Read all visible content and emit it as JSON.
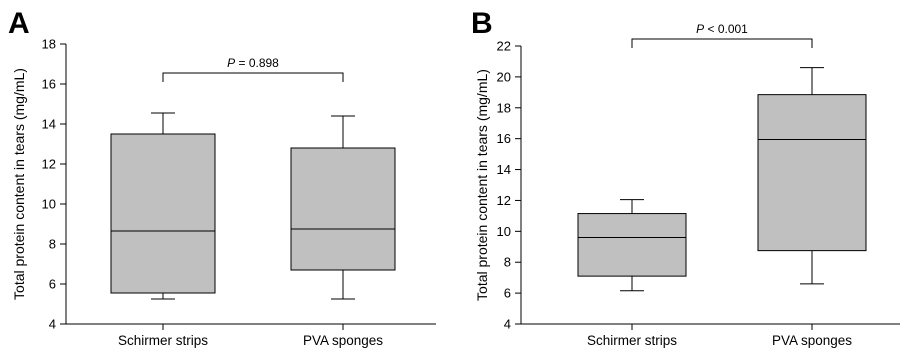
{
  "chart_data": [
    {
      "type": "box",
      "panel_label": "A",
      "ylabel": "Total protein content in tears (mg/mL)",
      "ylim": [
        4,
        18
      ],
      "yticks": [
        4,
        6,
        8,
        10,
        12,
        14,
        16,
        18
      ],
      "categories": [
        "Schirmer strips",
        "PVA sponges"
      ],
      "boxes": [
        {
          "category": "Schirmer strips",
          "whisker_low": 5.25,
          "q1": 5.55,
          "median": 8.65,
          "q3": 13.5,
          "whisker_high": 14.55
        },
        {
          "category": "PVA sponges",
          "whisker_low": 5.25,
          "q1": 6.7,
          "median": 8.75,
          "q3": 12.8,
          "whisker_high": 14.4
        }
      ],
      "significance": {
        "text_prefix": "P",
        "text_suffix": " = 0.898",
        "bracket_y": 16.55
      },
      "box_color": "#c0c0c0"
    },
    {
      "type": "box",
      "panel_label": "B",
      "ylabel": "Total protein content in tears (mg/mL)",
      "ylim": [
        4,
        22
      ],
      "yticks": [
        4,
        6,
        8,
        10,
        12,
        14,
        16,
        18,
        20,
        22
      ],
      "categories": [
        "Schirmer strips",
        "PVA sponges"
      ],
      "boxes": [
        {
          "category": "Schirmer strips",
          "whisker_low": 6.15,
          "q1": 7.1,
          "median": 9.6,
          "q3": 11.15,
          "whisker_high": 12.05
        },
        {
          "category": "PVA sponges",
          "whisker_low": 6.6,
          "q1": 8.75,
          "median": 15.95,
          "q3": 18.85,
          "whisker_high": 20.6
        }
      ],
      "significance": {
        "text_prefix": "P",
        "text_suffix": " < 0.001",
        "bracket_y": 22.45
      },
      "box_color": "#c0c0c0"
    }
  ]
}
